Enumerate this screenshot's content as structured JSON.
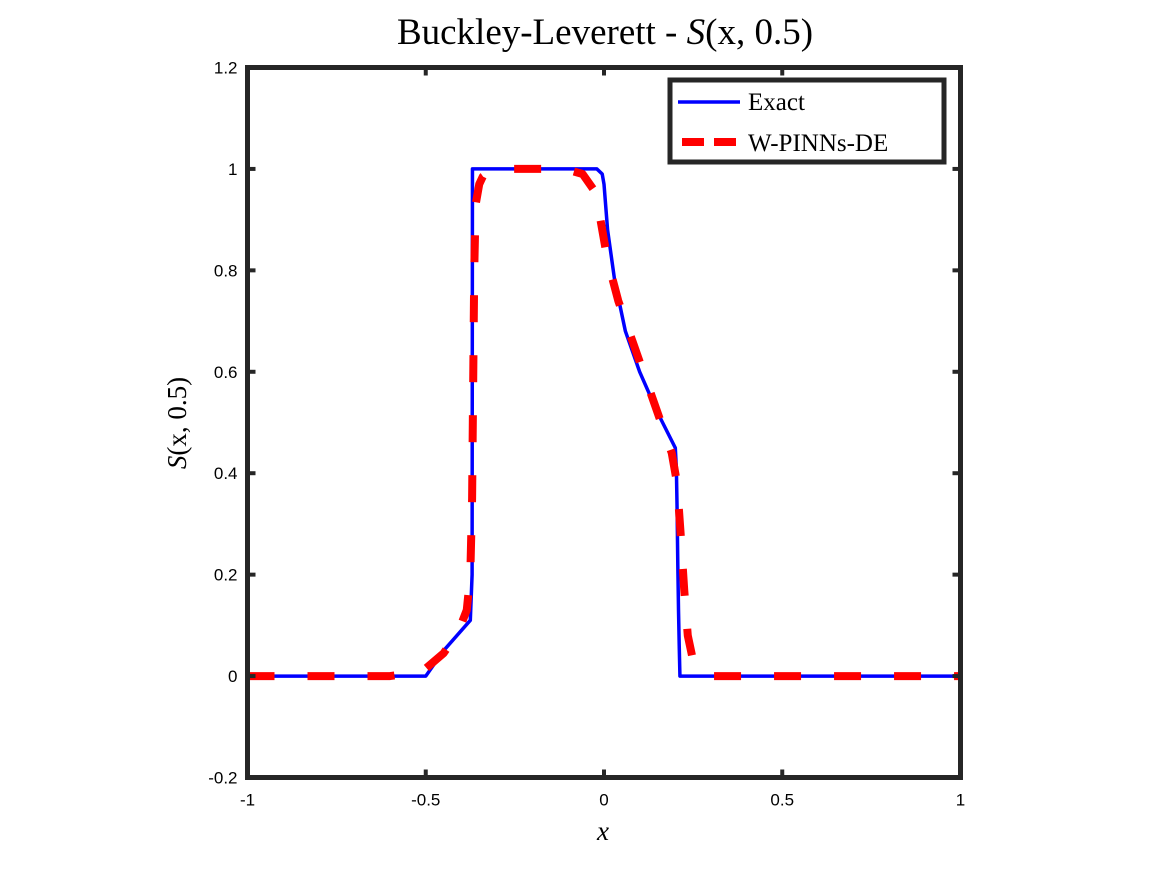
{
  "chart_data": {
    "type": "line",
    "title": {
      "prefix": "Buckley-Leverett - ",
      "var": "S",
      "args": "(x, 0.5)"
    },
    "xlabel": "x",
    "ylabel": {
      "var": "S",
      "args": "(x, 0.5)"
    },
    "xlim": [
      -1,
      1
    ],
    "ylim": [
      -0.2,
      1.2
    ],
    "xticks": [
      -1,
      -0.5,
      0,
      0.5,
      1
    ],
    "xtick_labels": [
      "-1",
      "-0.5",
      "0",
      "0.5",
      "1"
    ],
    "yticks": [
      -0.2,
      0,
      0.2,
      0.4,
      0.6,
      0.8,
      1,
      1.2
    ],
    "ytick_labels": [
      "-0.2",
      "0",
      "0.2",
      "0.4",
      "0.6",
      "0.8",
      "1",
      "1.2"
    ],
    "grid": false,
    "legend_position": "top-right",
    "series": [
      {
        "name": "Exact",
        "color": "#0000ff",
        "style": "solid",
        "x": [
          -1,
          -0.6,
          -0.5,
          -0.45,
          -0.4,
          -0.375,
          -0.37,
          -0.369,
          -0.3,
          -0.2,
          -0.1,
          -0.02,
          -0.005,
          0.0,
          0.01,
          0.03,
          0.06,
          0.1,
          0.15,
          0.2,
          0.203,
          0.205,
          0.207,
          0.209,
          0.211,
          0.213,
          0.25,
          0.5,
          1.0
        ],
        "y": [
          0,
          0,
          0,
          0.05,
          0.09,
          0.11,
          0.2,
          1.0,
          1.0,
          1.0,
          1.0,
          1.0,
          0.99,
          0.97,
          0.88,
          0.78,
          0.68,
          0.6,
          0.52,
          0.45,
          0.41,
          0.33,
          0.22,
          0.13,
          0.06,
          0.0,
          0.0,
          0.0,
          0.0
        ]
      },
      {
        "name": "W-PINNs-DE",
        "color": "#ff0000",
        "style": "dashed",
        "x": [
          -1,
          -0.7,
          -0.6,
          -0.55,
          -0.5,
          -0.45,
          -0.41,
          -0.385,
          -0.375,
          -0.37,
          -0.368,
          -0.366,
          -0.364,
          -0.36,
          -0.35,
          -0.34,
          -0.32,
          -0.28,
          -0.22,
          -0.15,
          -0.1,
          -0.06,
          -0.03,
          -0.01,
          0.01,
          0.04,
          0.08,
          0.12,
          0.16,
          0.19,
          0.205,
          0.215,
          0.225,
          0.235,
          0.25,
          0.27,
          0.3,
          0.4,
          0.6,
          0.8,
          1.0
        ],
        "y": [
          0,
          0,
          0,
          0.005,
          0.015,
          0.045,
          0.085,
          0.13,
          0.2,
          0.35,
          0.5,
          0.65,
          0.8,
          0.93,
          0.97,
          0.985,
          0.995,
          1.0,
          1.0,
          1.0,
          0.998,
          0.99,
          0.96,
          0.9,
          0.82,
          0.74,
          0.66,
          0.58,
          0.5,
          0.44,
          0.38,
          0.28,
          0.17,
          0.08,
          0.03,
          0.01,
          0.0,
          0.0,
          0.0,
          0.0,
          0.0
        ]
      }
    ]
  }
}
